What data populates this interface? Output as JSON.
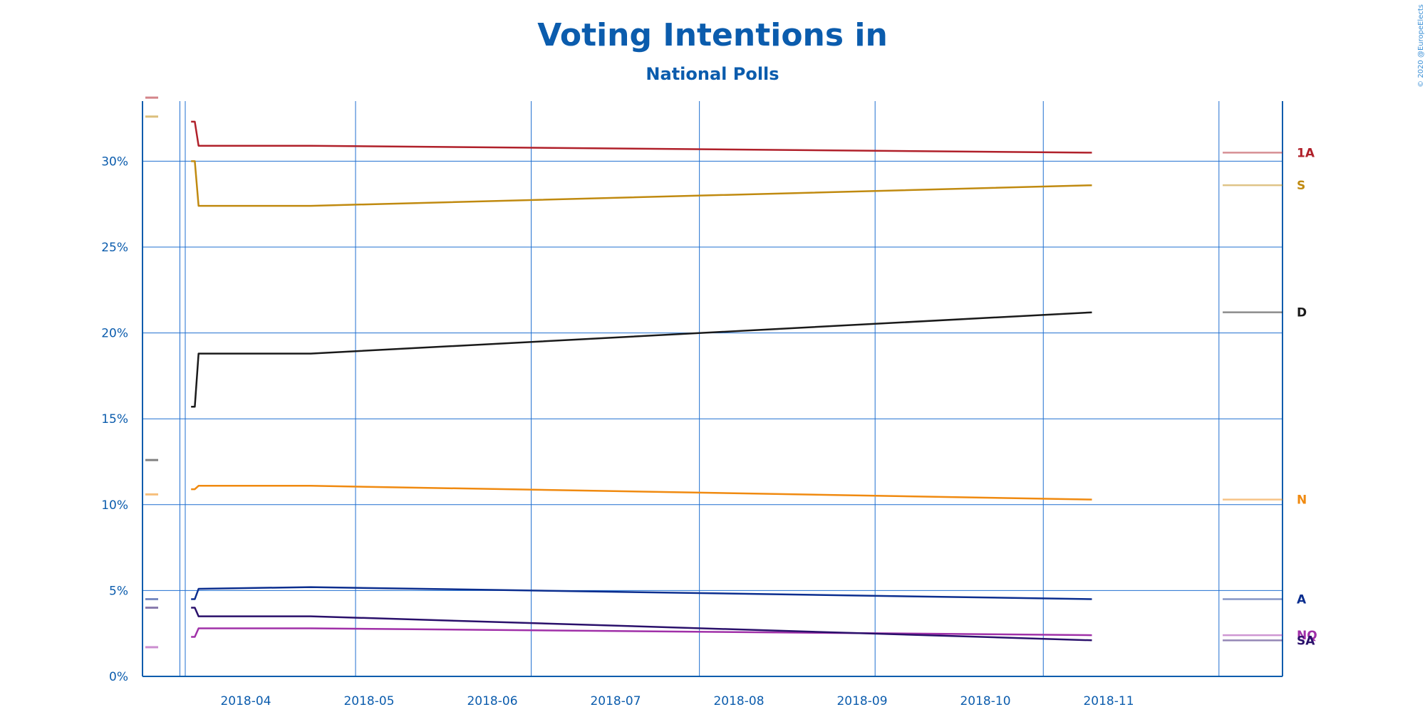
{
  "copyright": "© 2020 @EuropeElects",
  "chart_data": {
    "type": "line",
    "title": "Voting Intentions in",
    "subtitle": "National Polls",
    "xlabel": "",
    "ylabel": "",
    "ylim": [
      0,
      33.5
    ],
    "x_tick_labels": [
      "2018-04",
      "2018-05",
      "2018-06",
      "2018-07",
      "2018-08",
      "2018-09",
      "2018-10",
      "2018-11"
    ],
    "y_ticks": [
      {
        "value": 0,
        "label": "0%"
      },
      {
        "value": 5,
        "label": "5%"
      },
      {
        "value": 10,
        "label": "10%"
      },
      {
        "value": 15,
        "label": "15%"
      },
      {
        "value": 20,
        "label": "20%"
      },
      {
        "value": 25,
        "label": "25%"
      },
      {
        "value": 30,
        "label": "30%"
      }
    ],
    "grid": true,
    "legend": "right (end-of-line labels)",
    "x": [
      "2018-03-14",
      "2018-03-15",
      "2018-03-16",
      "2018-04-15",
      "2018-11-10",
      "2018-12-15"
    ],
    "series": [
      {
        "name": "1A",
        "color": "#b0202a",
        "values": [
          32.3,
          32.3,
          30.9,
          30.9,
          30.5,
          30.5
        ],
        "previous_result": 33.7
      },
      {
        "name": "S",
        "color": "#c08a10",
        "values": [
          30.0,
          30.0,
          27.4,
          27.4,
          28.6,
          28.6
        ],
        "previous_result": 32.6
      },
      {
        "name": "D",
        "color": "#1a1a1a",
        "values": [
          15.7,
          15.7,
          18.8,
          18.8,
          21.2,
          21.2
        ],
        "previous_result": 12.6
      },
      {
        "name": "N",
        "color": "#f08a10",
        "values": [
          10.9,
          10.9,
          11.1,
          11.1,
          10.3,
          10.3
        ],
        "previous_result": 10.6
      },
      {
        "name": "A",
        "color": "#0b2e8f",
        "values": [
          4.5,
          4.5,
          5.1,
          5.2,
          4.5,
          4.5
        ],
        "previous_result": 4.5
      },
      {
        "name": "NQ",
        "color": "#a030a8",
        "values": [
          2.3,
          2.3,
          2.8,
          2.8,
          2.4,
          2.4
        ],
        "previous_result": 1.7
      },
      {
        "name": "SA",
        "color": "#2a106b",
        "values": [
          4.0,
          4.0,
          3.5,
          3.5,
          2.1,
          2.1
        ],
        "previous_result": 4.0
      }
    ]
  }
}
